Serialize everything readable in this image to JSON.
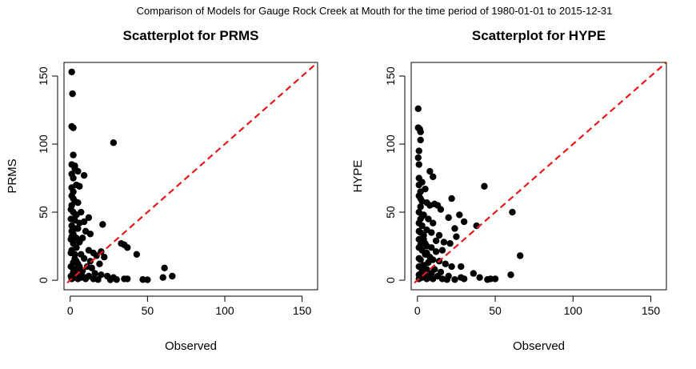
{
  "figure_title": "Comparison of Models for Gauge Rock Creek at Mouth for the time period of 1980-01-01 to 2015-12-31",
  "chart_data": [
    {
      "type": "scatter",
      "title": "Scatterplot for PRMS",
      "xlabel": "Observed",
      "ylabel": "PRMS",
      "xlim": [
        -4,
        160
      ],
      "ylim": [
        -7,
        160
      ],
      "xticks": [
        0,
        50,
        100,
        150
      ],
      "yticks": [
        0,
        50,
        100,
        150
      ],
      "grid": false,
      "legend": "none",
      "point_color": "#000000",
      "reference_line": {
        "type": "1:1",
        "color": "#e31a1c",
        "style": "dashed"
      },
      "points": [
        [
          1,
          153
        ],
        [
          1.5,
          137
        ],
        [
          1,
          113
        ],
        [
          2,
          112
        ],
        [
          28,
          101
        ],
        [
          2,
          92
        ],
        [
          1,
          85
        ],
        [
          3,
          84
        ],
        [
          3,
          82
        ],
        [
          5,
          80
        ],
        [
          1,
          78
        ],
        [
          9,
          77
        ],
        [
          2,
          75
        ],
        [
          4,
          70
        ],
        [
          6,
          69
        ],
        [
          1,
          68
        ],
        [
          2,
          65
        ],
        [
          1,
          62
        ],
        [
          2,
          60
        ],
        [
          3,
          58
        ],
        [
          5,
          57
        ],
        [
          1,
          55
        ],
        [
          0.5,
          52
        ],
        [
          2,
          50
        ],
        [
          7,
          50
        ],
        [
          4,
          48
        ],
        [
          12,
          46
        ],
        [
          0.5,
          45
        ],
        [
          2,
          45
        ],
        [
          3,
          44
        ],
        [
          6,
          42
        ],
        [
          9,
          43
        ],
        [
          21,
          41
        ],
        [
          1,
          40
        ],
        [
          3,
          38
        ],
        [
          5,
          38
        ],
        [
          10,
          36
        ],
        [
          13,
          34
        ],
        [
          2,
          34
        ],
        [
          1,
          32
        ],
        [
          4,
          31
        ],
        [
          8,
          31
        ],
        [
          6,
          28
        ],
        [
          33,
          27
        ],
        [
          35,
          26
        ],
        [
          37,
          24
        ],
        [
          43,
          19
        ],
        [
          4,
          24
        ],
        [
          1,
          22
        ],
        [
          12,
          22
        ],
        [
          15,
          20
        ],
        [
          20,
          21
        ],
        [
          7,
          19
        ],
        [
          17,
          18
        ],
        [
          22,
          17
        ],
        [
          3,
          16
        ],
        [
          9,
          16
        ],
        [
          13,
          14
        ],
        [
          2,
          13
        ],
        [
          5,
          12
        ],
        [
          19,
          12
        ],
        [
          6,
          10
        ],
        [
          11,
          10
        ],
        [
          14,
          9
        ],
        [
          3,
          8
        ],
        [
          8,
          7
        ],
        [
          61,
          9
        ],
        [
          2,
          6
        ],
        [
          16,
          5
        ],
        [
          20,
          4
        ],
        [
          4,
          4
        ],
        [
          12,
          3
        ],
        [
          24,
          3
        ],
        [
          28,
          2
        ],
        [
          35,
          1
        ],
        [
          37,
          1
        ],
        [
          47,
          0.5
        ],
        [
          50,
          0.3
        ],
        [
          60,
          2
        ],
        [
          66,
          3
        ],
        [
          1,
          1
        ],
        [
          3,
          2
        ],
        [
          5,
          1
        ],
        [
          7,
          2
        ],
        [
          10,
          1
        ],
        [
          15,
          1
        ],
        [
          18,
          0.5
        ],
        [
          26,
          0.3
        ],
        [
          30,
          0.5
        ],
        [
          0.5,
          3
        ],
        [
          0.5,
          10
        ],
        [
          0.5,
          20
        ],
        [
          0.5,
          30
        ],
        [
          1,
          36
        ],
        [
          2,
          27
        ],
        [
          3,
          19
        ],
        [
          4,
          14
        ],
        [
          6,
          6
        ],
        [
          8,
          3
        ]
      ]
    },
    {
      "type": "scatter",
      "title": "Scatterplot for HYPE",
      "xlabel": "Observed",
      "ylabel": "HYPE",
      "xlim": [
        -4,
        160
      ],
      "ylim": [
        -7,
        160
      ],
      "xticks": [
        0,
        50,
        100,
        150
      ],
      "yticks": [
        0,
        50,
        100,
        150
      ],
      "grid": false,
      "legend": "none",
      "point_color": "#000000",
      "reference_line": {
        "type": "1:1",
        "color": "#e31a1c",
        "style": "dashed"
      },
      "points": [
        [
          0.5,
          126
        ],
        [
          0.5,
          112
        ],
        [
          1.5,
          111
        ],
        [
          2,
          109
        ],
        [
          2,
          103
        ],
        [
          1,
          95
        ],
        [
          0.5,
          90
        ],
        [
          1,
          85
        ],
        [
          8,
          80
        ],
        [
          10,
          76
        ],
        [
          1,
          75
        ],
        [
          3,
          72
        ],
        [
          1,
          70
        ],
        [
          43,
          69
        ],
        [
          5,
          67
        ],
        [
          2,
          65
        ],
        [
          1,
          62
        ],
        [
          2,
          60
        ],
        [
          22,
          60
        ],
        [
          3,
          58
        ],
        [
          6,
          57
        ],
        [
          11,
          56
        ],
        [
          13,
          55
        ],
        [
          8,
          55
        ],
        [
          61,
          50
        ],
        [
          15,
          52
        ],
        [
          1,
          50
        ],
        [
          27,
          48
        ],
        [
          4,
          48
        ],
        [
          20,
          46
        ],
        [
          2,
          45
        ],
        [
          7,
          45
        ],
        [
          30,
          43
        ],
        [
          1,
          42
        ],
        [
          10,
          42
        ],
        [
          38,
          40
        ],
        [
          3,
          40
        ],
        [
          24,
          38
        ],
        [
          6,
          37
        ],
        [
          2,
          35
        ],
        [
          9,
          35
        ],
        [
          14,
          33
        ],
        [
          25,
          32
        ],
        [
          1,
          30
        ],
        [
          4,
          30
        ],
        [
          12,
          29
        ],
        [
          17,
          28
        ],
        [
          21,
          27
        ],
        [
          2,
          26
        ],
        [
          6,
          25
        ],
        [
          9,
          24
        ],
        [
          16,
          22
        ],
        [
          3,
          22
        ],
        [
          12,
          21
        ],
        [
          5,
          19
        ],
        [
          66,
          18
        ],
        [
          8,
          17
        ],
        [
          10,
          15
        ],
        [
          2,
          15
        ],
        [
          14,
          14
        ],
        [
          7,
          13
        ],
        [
          18,
          12
        ],
        [
          4,
          11
        ],
        [
          22,
          10
        ],
        [
          28,
          10
        ],
        [
          1,
          10
        ],
        [
          6,
          8
        ],
        [
          11,
          8
        ],
        [
          3,
          7
        ],
        [
          15,
          6
        ],
        [
          36,
          5
        ],
        [
          9,
          5
        ],
        [
          60,
          4
        ],
        [
          5,
          4
        ],
        [
          20,
          3
        ],
        [
          13,
          3
        ],
        [
          40,
          2
        ],
        [
          28,
          2
        ],
        [
          47,
          1
        ],
        [
          50,
          1
        ],
        [
          30,
          1
        ],
        [
          45,
          0.5
        ],
        [
          24,
          0.5
        ],
        [
          1,
          1
        ],
        [
          3,
          2
        ],
        [
          6,
          1
        ],
        [
          8,
          2
        ],
        [
          10,
          1
        ],
        [
          16,
          1
        ],
        [
          19,
          0.5
        ],
        [
          1,
          4
        ],
        [
          1,
          16
        ],
        [
          1,
          24
        ],
        [
          1,
          36
        ],
        [
          2,
          54
        ],
        [
          3,
          47
        ],
        [
          4,
          33
        ],
        [
          5,
          27
        ],
        [
          6,
          20
        ]
      ]
    }
  ]
}
